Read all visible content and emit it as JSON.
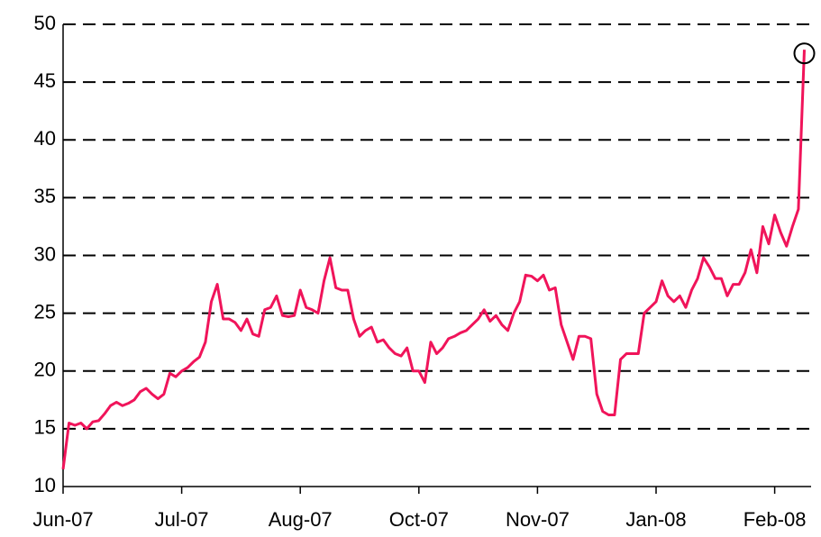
{
  "chart_data": {
    "type": "line",
    "categories": [
      "Jun-07",
      null,
      null,
      null,
      null,
      null,
      null,
      null,
      null,
      null,
      null,
      null,
      null,
      null,
      null,
      null,
      null,
      null,
      null,
      null,
      "Jul-07",
      null,
      null,
      null,
      null,
      null,
      null,
      null,
      null,
      null,
      null,
      null,
      null,
      null,
      null,
      null,
      null,
      null,
      null,
      null,
      "Aug-07",
      null,
      null,
      null,
      null,
      null,
      null,
      null,
      null,
      null,
      null,
      null,
      null,
      null,
      null,
      null,
      null,
      null,
      null,
      null,
      "Oct-07",
      null,
      null,
      null,
      null,
      null,
      null,
      null,
      null,
      null,
      null,
      null,
      null,
      null,
      null,
      null,
      null,
      null,
      null,
      null,
      "Nov-07",
      null,
      null,
      null,
      null,
      null,
      null,
      null,
      null,
      null,
      null,
      null,
      null,
      null,
      null,
      null,
      null,
      null,
      null,
      null,
      "Jan-08",
      null,
      null,
      null,
      null,
      null,
      null,
      null,
      null,
      null,
      null,
      null,
      null,
      null,
      null,
      null,
      null,
      null,
      null,
      null,
      "Feb-08",
      null,
      null,
      null,
      null,
      null
    ],
    "series": [
      {
        "color": "#f0145a",
        "values": [
          11.5,
          15.5,
          15.3,
          15.5,
          15.0,
          15.6,
          15.7,
          16.3,
          17.0,
          17.3,
          17.0,
          17.2,
          17.5,
          18.2,
          18.5,
          18.0,
          17.6,
          18.0,
          19.8,
          19.5,
          20.0,
          20.3,
          20.8,
          21.2,
          22.5,
          26.0,
          27.5,
          24.5,
          24.5,
          24.2,
          23.5,
          24.5,
          23.2,
          23.0,
          25.3,
          25.5,
          26.5,
          24.8,
          24.7,
          24.8,
          27.0,
          25.5,
          25.3,
          25.0,
          27.8,
          29.8,
          27.2,
          27.0,
          27.0,
          24.5,
          23.0,
          23.5,
          23.8,
          22.5,
          22.7,
          22.0,
          21.5,
          21.3,
          22.0,
          20.0,
          20.0,
          19.0,
          22.5,
          21.5,
          22.0,
          22.8,
          23.0,
          23.3,
          23.5,
          24.0,
          24.5,
          25.3,
          24.3,
          24.8,
          24.0,
          23.5,
          25.0,
          26.0,
          28.3,
          28.2,
          27.8,
          28.3,
          27.0,
          27.2,
          24.0,
          22.5,
          21.0,
          23.0,
          23.0,
          22.8,
          18.0,
          16.5,
          16.2,
          16.2,
          21.0,
          21.5,
          21.5,
          21.5,
          25.0,
          25.5,
          26.0,
          27.8,
          26.5,
          26.0,
          26.5,
          25.5,
          27.0,
          28.0,
          29.8,
          29.0,
          28.0,
          28.0,
          26.5,
          27.5,
          27.5,
          28.5,
          30.5,
          28.5,
          32.5,
          31.0,
          33.5,
          32.0,
          30.8,
          32.5,
          34.0,
          47.8
        ]
      }
    ],
    "ylim": [
      10,
      50
    ],
    "yticks": [
      10,
      15,
      20,
      25,
      30,
      35,
      40,
      45,
      50
    ],
    "grid": true
  }
}
